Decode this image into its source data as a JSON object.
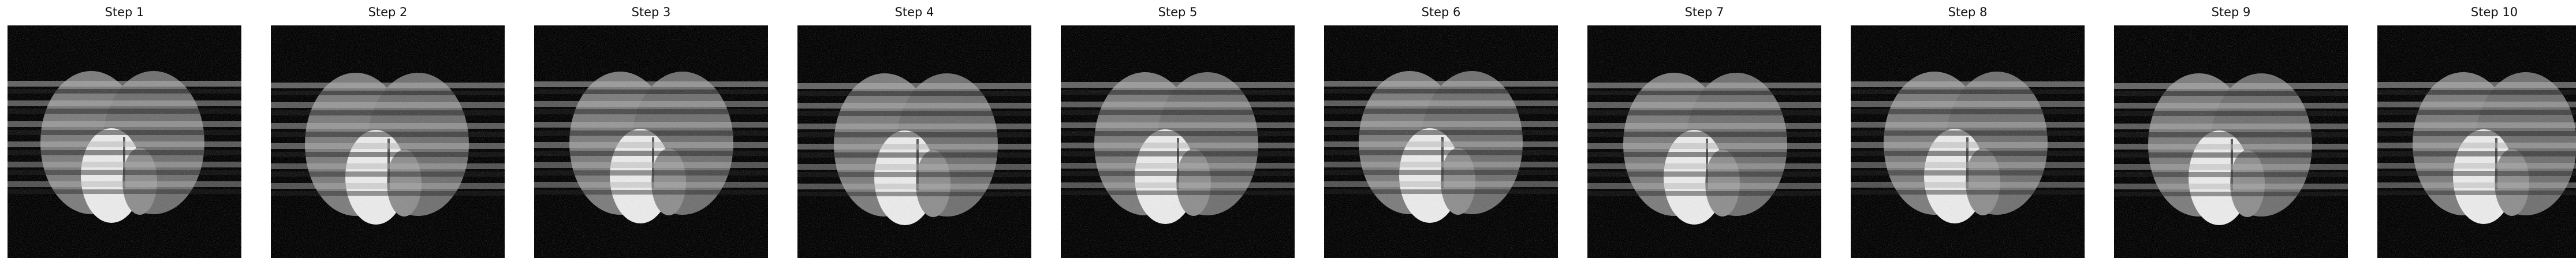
{
  "figure": {
    "panels": [
      {
        "title": "Step 1",
        "variant": 0
      },
      {
        "title": "Step 2",
        "variant": 1
      },
      {
        "title": "Step 3",
        "variant": 2
      },
      {
        "title": "Step 4",
        "variant": 3
      },
      {
        "title": "Step 5",
        "variant": 4
      },
      {
        "title": "Step 6",
        "variant": 5
      },
      {
        "title": "Step 7",
        "variant": 6
      },
      {
        "title": "Step 8",
        "variant": 7
      },
      {
        "title": "Step 9",
        "variant": 8
      },
      {
        "title": "Step 10",
        "variant": 9
      }
    ],
    "colors": {
      "background": "#000000",
      "ellipse": "#7c7c7c",
      "bright_region": "#ececec",
      "stripe_light": "#b4b4b4",
      "stripe_dark": "#1e1e1e",
      "title_text": "#111111"
    },
    "content": "grayscale phantom: two overlapping gray ellipses with a bright oval at their overlap, crossed by horizontal stripe artifacts, on a noisy black background"
  }
}
